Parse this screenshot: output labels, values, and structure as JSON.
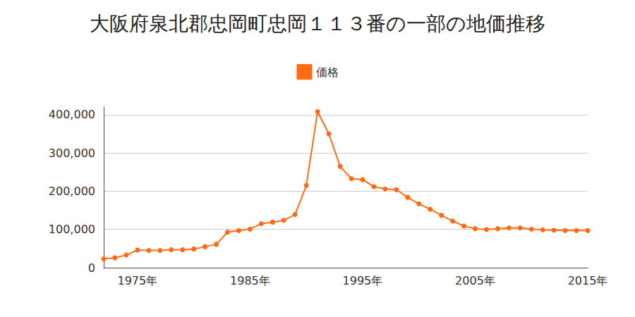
{
  "chart_data": {
    "type": "line",
    "title": "大阪府泉北郡忠岡町忠岡１１３番の一部の地価推移",
    "categories": [
      null,
      null,
      null,
      "1975年",
      null,
      null,
      null,
      null,
      null,
      null,
      null,
      null,
      null,
      "1985年",
      null,
      null,
      null,
      null,
      null,
      null,
      null,
      null,
      null,
      "1995年",
      null,
      null,
      null,
      null,
      null,
      null,
      null,
      null,
      null,
      "2005年",
      null,
      null,
      null,
      null,
      null,
      null,
      null,
      null,
      null,
      "2015年"
    ],
    "series": [
      {
        "name": "価格",
        "color": "#ff6a13",
        "marker": "circle",
        "values": [
          23000,
          26000,
          33000,
          46000,
          45000,
          45000,
          47000,
          47000,
          49000,
          55000,
          61000,
          93000,
          97000,
          101000,
          115000,
          119000,
          124000,
          139000,
          215000,
          408000,
          350000,
          265000,
          233000,
          230000,
          212000,
          206000,
          204000,
          184000,
          167000,
          153000,
          137000,
          122000,
          109000,
          102000,
          100000,
          102000,
          104000,
          104000,
          101000,
          99000,
          98000,
          97000,
          97000,
          97000
        ]
      }
    ],
    "ylim": [
      0,
      420000
    ],
    "yticks": [
      0,
      {
        "value": 100000,
        "label": "100,000"
      },
      {
        "value": 200000,
        "label": "200,000"
      },
      {
        "value": 300000,
        "label": "300,000"
      },
      {
        "value": 400000,
        "label": "400,000"
      }
    ],
    "grid": true,
    "legend": "top"
  }
}
